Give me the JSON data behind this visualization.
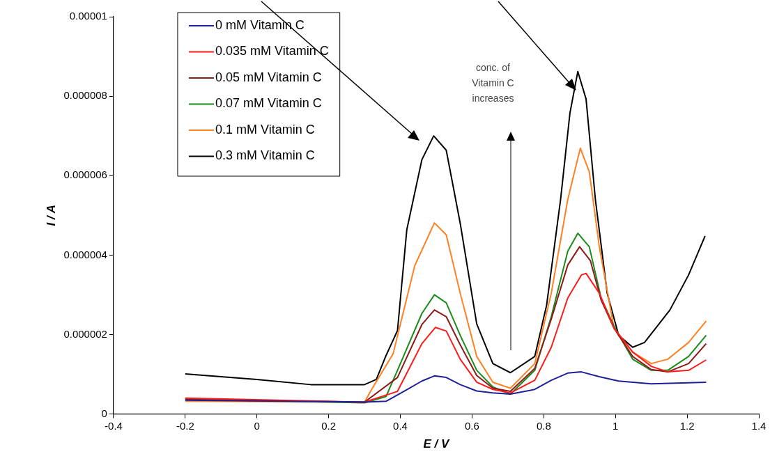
{
  "chart_data": {
    "type": "line",
    "xlabel": "E / V",
    "ylabel": "I / A",
    "xlim": [
      -0.4,
      1.4
    ],
    "xticks": [
      -0.4,
      -0.2,
      0,
      0.2,
      0.4,
      0.6,
      0.8,
      1,
      1.2,
      1.4
    ],
    "ylim": [
      0,
      1e-05
    ],
    "yticks": [
      {
        "value": 0,
        "label": "0"
      },
      {
        "value": 2e-06,
        "label": "0.000002"
      },
      {
        "value": 4e-06,
        "label": "0.000004"
      },
      {
        "value": 6e-06,
        "label": "0.000006"
      },
      {
        "value": 8e-06,
        "label": "0.000008"
      },
      {
        "value": 1e-05,
        "label": "0.00001"
      }
    ],
    "grid": false,
    "legend": "top left",
    "marker": "none",
    "line_style": "solid",
    "annotations": [
      "conc. of Vitamin C increases"
    ],
    "series": [
      {
        "name": "0 mM Vitamin C",
        "color": "#1f1f9a",
        "x": [
          -0.2,
          0.3,
          0.36,
          0.42,
          0.46,
          0.495,
          0.528,
          0.567,
          0.613,
          0.658,
          0.707,
          0.775,
          0.821,
          0.867,
          0.905,
          0.955,
          1.009,
          1.1,
          1.253
        ],
        "values": [
          3.5e-07,
          3e-07,
          3.2e-07,
          6.2e-07,
          8.3e-07,
          9.6e-07,
          9.2e-07,
          7.4e-07,
          5.8e-07,
          5.3e-07,
          5e-07,
          6.2e-07,
          8.5e-07,
          1.03e-06,
          1.06e-06,
          9.4e-07,
          8.3e-07,
          7.6e-07,
          8e-07
        ]
      },
      {
        "name": "0.035 mM Vitamin C",
        "color": "#ff1a1a",
        "x": [
          -0.2,
          0.3,
          0.392,
          0.46,
          0.498,
          0.528,
          0.567,
          0.613,
          0.658,
          0.707,
          0.775,
          0.821,
          0.867,
          0.905,
          0.918,
          0.955,
          0.996,
          1.048,
          1.1,
          1.146,
          1.204,
          1.253
        ],
        "values": [
          4e-07,
          3e-07,
          5.7e-07,
          1.77e-06,
          2.18e-06,
          2.09e-06,
          1.38e-06,
          8e-07,
          6.2e-07,
          5.3e-07,
          8.5e-07,
          1.68e-06,
          2.92e-06,
          3.5e-06,
          3.54e-06,
          3.04e-06,
          2.16e-06,
          1.56e-06,
          1.2e-06,
          1.06e-06,
          1.1e-06,
          1.36e-06
        ]
      },
      {
        "name": "0.05 mM Vitamin C",
        "color": "#8b1a1a",
        "x": [
          -0.2,
          0.3,
          0.392,
          0.46,
          0.495,
          0.528,
          0.567,
          0.613,
          0.658,
          0.707,
          0.775,
          0.821,
          0.867,
          0.9,
          0.93,
          0.96,
          0.996,
          1.048,
          1.1,
          1.146,
          1.204,
          1.253
        ],
        "values": [
          3.6e-07,
          3e-07,
          9.2e-07,
          2.25e-06,
          2.62e-06,
          2.45e-06,
          1.74e-06,
          9.7e-07,
          6.5e-07,
          5.7e-07,
          1.15e-06,
          2.39e-06,
          3.75e-06,
          4.21e-06,
          3.86e-06,
          2.87e-06,
          2.16e-06,
          1.45e-06,
          1.12e-06,
          1.06e-06,
          1.27e-06,
          1.77e-06
        ]
      },
      {
        "name": "0.07 mM Vitamin C",
        "color": "#1a8c1a",
        "x": [
          -0.2,
          0.3,
          0.36,
          0.392,
          0.46,
          0.495,
          0.528,
          0.567,
          0.613,
          0.658,
          0.707,
          0.775,
          0.821,
          0.867,
          0.895,
          0.927,
          0.96,
          0.996,
          1.048,
          1.1,
          1.146,
          1.204,
          1.253
        ],
        "values": [
          3.8e-07,
          2.8e-07,
          4.4e-07,
          1.1e-06,
          2.53e-06,
          3e-06,
          2.8e-06,
          1.98e-06,
          1.1e-06,
          6.8e-07,
          5e-07,
          1.1e-06,
          2.45e-06,
          4.1e-06,
          4.55e-06,
          4.21e-06,
          2.92e-06,
          2.21e-06,
          1.38e-06,
          1.1e-06,
          1.1e-06,
          1.45e-06,
          1.98e-06
        ]
      },
      {
        "name": "0.1 mM Vitamin C",
        "color": "#ff8020",
        "x": [
          -0.2,
          0.3,
          0.32,
          0.38,
          0.44,
          0.495,
          0.528,
          0.567,
          0.613,
          0.658,
          0.707,
          0.775,
          0.821,
          0.867,
          0.902,
          0.927,
          0.955,
          0.996,
          1.048,
          1.1,
          1.146,
          1.204,
          1.253
        ],
        "values": [
          3.2e-07,
          3e-07,
          6.2e-07,
          1.52e-06,
          3.73e-06,
          4.81e-06,
          4.51e-06,
          3.04e-06,
          1.45e-06,
          8e-07,
          6.5e-07,
          1.27e-06,
          3.04e-06,
          5.4e-06,
          6.69e-06,
          6.1e-06,
          4.21e-06,
          2.16e-06,
          1.56e-06,
          1.27e-06,
          1.38e-06,
          1.8e-06,
          2.34e-06
        ]
      },
      {
        "name": "0.3 mM Vitamin C",
        "color": "#000000",
        "x": [
          -0.2,
          0,
          0.15,
          0.3,
          0.333,
          0.36,
          0.392,
          0.418,
          0.46,
          0.493,
          0.528,
          0.567,
          0.613,
          0.658,
          0.707,
          0.775,
          0.808,
          0.847,
          0.873,
          0.895,
          0.918,
          0.944,
          0.977,
          1.009,
          1.048,
          1.081,
          1.152,
          1.204,
          1.25
        ],
        "values": [
          1.01e-06,
          8.7e-07,
          7.4e-07,
          7.4e-07,
          8.7e-07,
          1.47e-06,
          2.1e-06,
          4.64e-06,
          6.4e-06,
          7e-06,
          6.64e-06,
          4.8e-06,
          2.27e-06,
          1.27e-06,
          1.04e-06,
          1.45e-06,
          2.74e-06,
          5.4e-06,
          7.57e-06,
          8.62e-06,
          7.93e-06,
          5.4e-06,
          3.04e-06,
          1.98e-06,
          1.68e-06,
          1.8e-06,
          2.62e-06,
          3.5e-06,
          4.48e-06
        ]
      }
    ]
  }
}
